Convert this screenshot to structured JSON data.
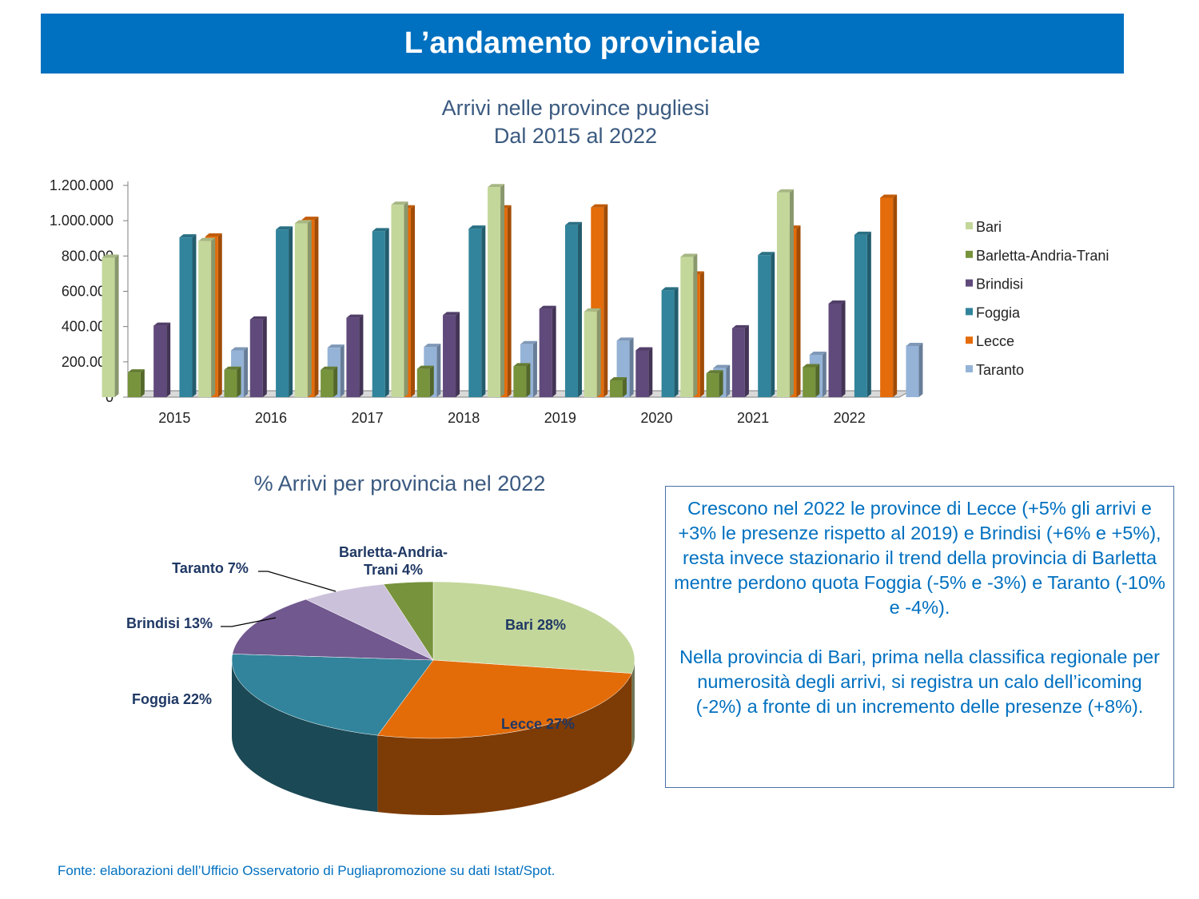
{
  "header": {
    "title": "L’andamento provinciale"
  },
  "chart_data": [
    {
      "type": "bar",
      "title_line1": "Arrivi nelle province pugliesi",
      "title_line2": "Dal 2015 al 2022",
      "categories": [
        "2015",
        "2016",
        "2017",
        "2018",
        "2019",
        "2020",
        "2021",
        "2022"
      ],
      "ylim": [
        0,
        1200000
      ],
      "yticks": [
        0,
        200000,
        400000,
        600000,
        800000,
        1000000,
        1200000
      ],
      "ytick_labels": [
        "0",
        "200.000",
        "400.000",
        "600.000",
        "800.000",
        "1.000.000",
        "1.200.000"
      ],
      "legend_position": "right",
      "series": [
        {
          "name": "Bari",
          "color": "#c4d79b",
          "values": [
            790000,
            885000,
            985000,
            1090000,
            1190000,
            485000,
            795000,
            1160000
          ]
        },
        {
          "name": "Barletta-Andria-Trani",
          "color": "#77933c",
          "values": [
            140000,
            155000,
            155000,
            160000,
            175000,
            95000,
            135000,
            170000
          ]
        },
        {
          "name": "Brindisi",
          "color": "#604a7b",
          "values": [
            405000,
            440000,
            450000,
            465000,
            500000,
            265000,
            390000,
            530000
          ]
        },
        {
          "name": "Foggia",
          "color": "#31849b",
          "values": [
            905000,
            950000,
            940000,
            955000,
            975000,
            605000,
            805000,
            920000
          ]
        },
        {
          "name": "Lecce",
          "color": "#e46c0a",
          "values": [
            910000,
            1005000,
            1070000,
            1070000,
            1075000,
            695000,
            955000,
            1130000
          ]
        },
        {
          "name": "Taranto",
          "color": "#95b3d7",
          "values": [
            265000,
            280000,
            285000,
            300000,
            320000,
            165000,
            240000,
            290000
          ]
        }
      ]
    },
    {
      "type": "pie",
      "title": "% Arrivi per provincia nel 2022",
      "slices": [
        {
          "name": "Bari",
          "label": "Bari 28%",
          "value": 28,
          "color": "#c4d79b"
        },
        {
          "name": "Lecce",
          "label": "Lecce 27%",
          "value": 27,
          "color": "#e36c09"
        },
        {
          "name": "Foggia",
          "label": "Foggia 22%",
          "value": 22,
          "color": "#31849b"
        },
        {
          "name": "Brindisi",
          "label": "Brindisi 13%",
          "value": 13,
          "color": "#71588f"
        },
        {
          "name": "Taranto",
          "label": "Taranto 7%",
          "value": 7,
          "color": "#ccc1da"
        },
        {
          "name": "Barletta-Andria-Trani",
          "label_line1": "Barletta-Andria-",
          "label_line2": "Trani 4%",
          "value": 4,
          "color": "#77933c"
        }
      ]
    }
  ],
  "note": {
    "para1": "Crescono nel 2022 le province di Lecce (+5% gli arrivi e +3% le presenze rispetto al 2019) e Brindisi (+6% e +5%), resta invece stazionario il trend della provincia di Barletta mentre perdono quota Foggia (-5% e -3%) e Taranto (-10% e -4%).",
    "para2a": "Nella provincia di Bari, prima nella classifica regionale per numerosità degli arrivi, si registra un calo dell’icoming",
    "para2b": "(-2%) a fronte di un incremento delle presenze (+8%)."
  },
  "source": "Fonte: elaborazioni dell’Ufficio Osservatorio di Pugliapromozione su dati Istat/Spot."
}
